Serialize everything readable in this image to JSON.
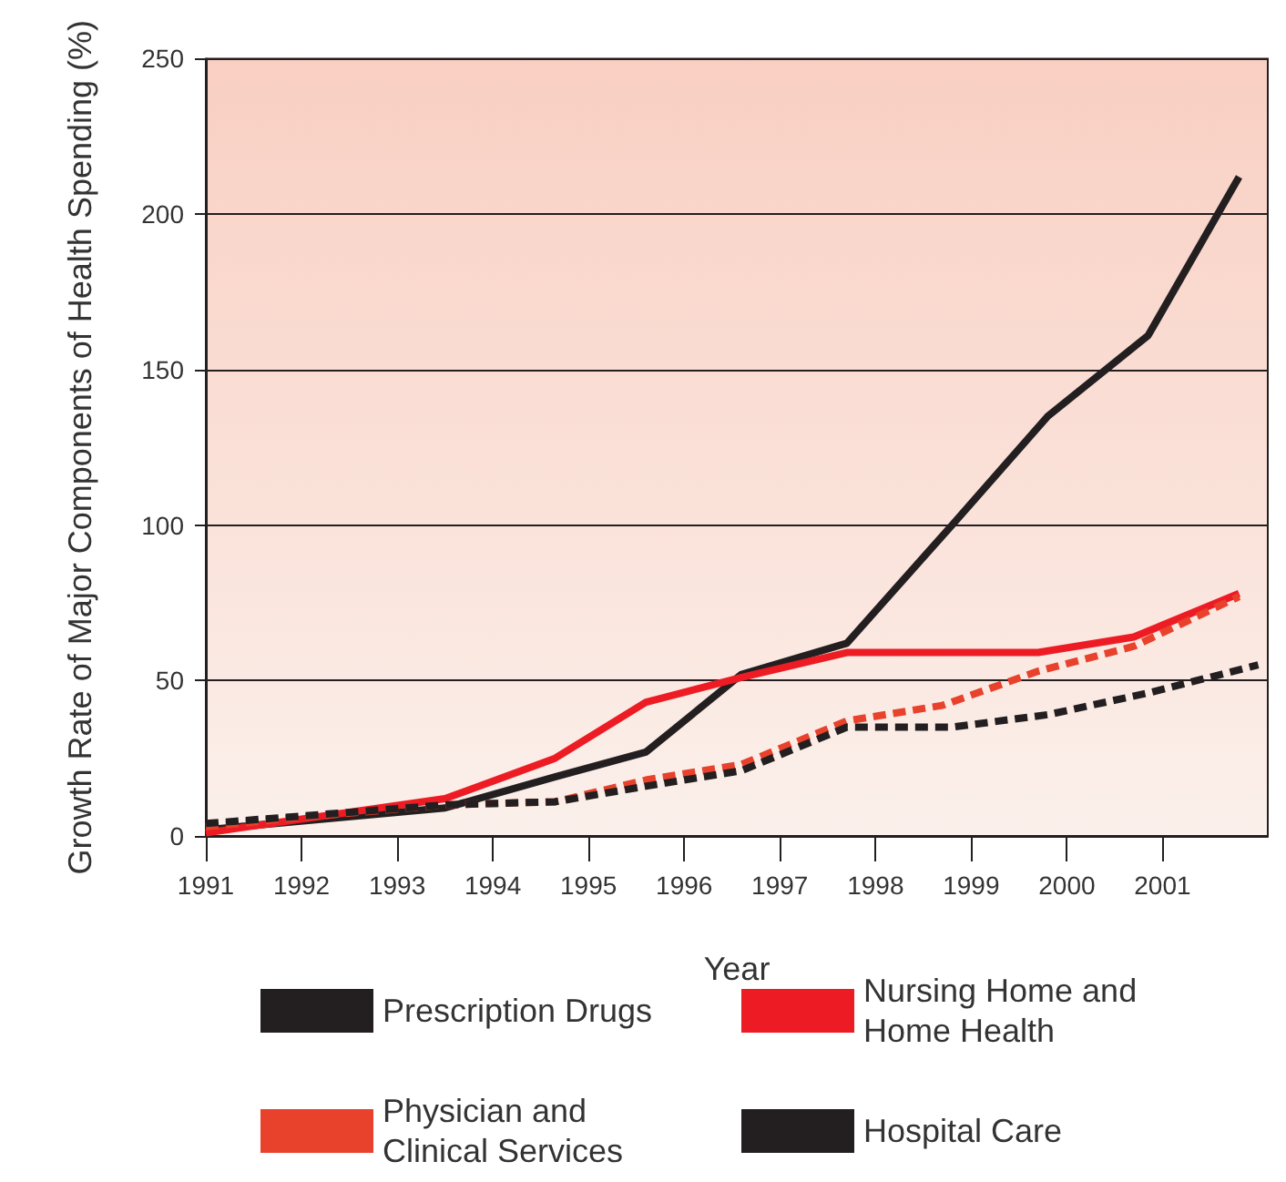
{
  "chart_data": {
    "type": "line",
    "xlabel": "Year",
    "ylabel": "Growth Rate of Major Components of Health Spending (%)",
    "xlim": [
      1991,
      2002.1
    ],
    "xticks": [
      1991,
      1992,
      1993,
      1994,
      1995,
      1996,
      1997,
      1998,
      1999,
      2000,
      2001
    ],
    "ylim": [
      0,
      250
    ],
    "yticks": [
      0,
      50,
      100,
      150,
      200,
      250
    ],
    "grid": "y",
    "legend": "bottom",
    "marker": "none",
    "series": [
      {
        "name": "Prescription Drugs",
        "color": "#231f20",
        "line_style": "solid",
        "x": [
          1991,
          1993.5,
          1994.65,
          1995.6,
          1996.6,
          1997.7,
          1998.8,
          1999.8,
          2000.85,
          2001.8
        ],
        "values": [
          2,
          9,
          19,
          27,
          52,
          62,
          100,
          135,
          161,
          212
        ]
      },
      {
        "name": "Nursing Home and Home Health",
        "color": "#ed1c24",
        "line_style": "solid",
        "x": [
          1991,
          1993.5,
          1994.65,
          1995.6,
          1996.6,
          1997.7,
          1999.7,
          2000.7,
          2001.8
        ],
        "values": [
          1,
          12,
          25,
          43,
          51,
          59,
          59,
          64,
          78
        ]
      },
      {
        "name": "Physician and Clinical Services",
        "color": "#e8412c",
        "line_style": "dashed",
        "x": [
          1991,
          1992,
          1993.5,
          1994.65,
          1995.6,
          1996.6,
          1997.7,
          1998.7,
          1999.7,
          2000.7,
          2001.8
        ],
        "values": [
          3,
          6,
          10,
          11,
          18,
          23,
          37,
          42,
          53,
          61,
          77
        ]
      },
      {
        "name": "Hospital Care",
        "color": "#231f20",
        "line_style": "dashed",
        "x": [
          1991,
          1993.5,
          1994.65,
          1995.6,
          1996.6,
          1997.7,
          1998.8,
          1999.8,
          2000.85,
          2002
        ],
        "values": [
          4,
          10,
          11,
          16,
          21,
          35,
          35,
          39,
          46,
          55
        ]
      }
    ]
  }
}
